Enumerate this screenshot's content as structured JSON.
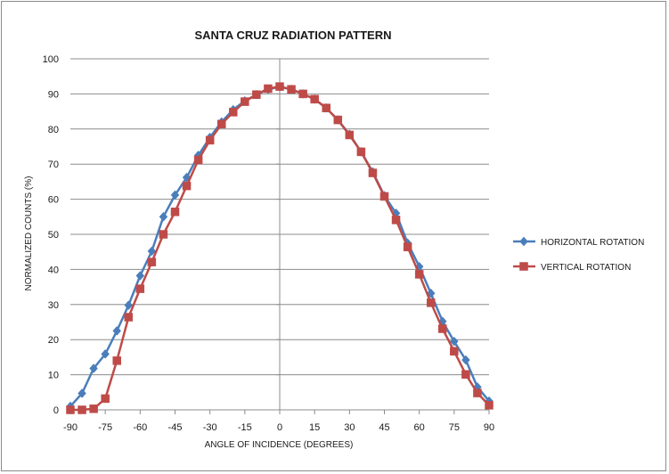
{
  "chart_data": {
    "type": "line",
    "title": "SANTA CRUZ RADIATION PATTERN",
    "xlabel": "ANGLE OF INCIDENCE (DEGREES)",
    "ylabel": "NORMALIZED COUNTS (%)",
    "xlim": [
      -90,
      90
    ],
    "ylim": [
      0,
      100
    ],
    "xticks": [
      -90,
      -75,
      -60,
      -45,
      -30,
      -15,
      0,
      15,
      30,
      45,
      60,
      75,
      90
    ],
    "yticks": [
      0,
      10,
      20,
      30,
      40,
      50,
      60,
      70,
      80,
      90,
      100
    ],
    "grid": "horizontal",
    "legend_position": "right",
    "x": [
      -90,
      -85,
      -80,
      -75,
      -70,
      -65,
      -60,
      -55,
      -50,
      -45,
      -40,
      -35,
      -30,
      -25,
      -20,
      -15,
      -10,
      -5,
      0,
      5,
      10,
      15,
      20,
      25,
      30,
      35,
      40,
      45,
      50,
      55,
      60,
      65,
      70,
      75,
      80,
      85,
      90
    ],
    "series": [
      {
        "name": "HORIZONTAL ROTATION",
        "color": "#4a7ebb",
        "marker": "diamond",
        "values": [
          1,
          4.7,
          11.8,
          15.9,
          22.5,
          29.8,
          38.2,
          45.2,
          55,
          61.2,
          66.2,
          72.5,
          77.6,
          82,
          85.5,
          88,
          89.8,
          91.3,
          92,
          91.3,
          90,
          88.5,
          86,
          82.6,
          78.5,
          73.5,
          67.8,
          61,
          56,
          47.5,
          40.8,
          33.2,
          25.2,
          19.5,
          14.2,
          6.5,
          2.5
        ]
      },
      {
        "name": "VERTICAL ROTATION",
        "color": "#be4b48",
        "marker": "square",
        "values": [
          0,
          0,
          0.3,
          3.2,
          14,
          26.4,
          34.5,
          42.1,
          50,
          56.4,
          63.8,
          71.2,
          76.8,
          81.4,
          84.8,
          87.8,
          89.8,
          91.5,
          92.1,
          91.3,
          90,
          88.5,
          86,
          82.6,
          78.3,
          73.5,
          67.5,
          60.8,
          54.1,
          46.4,
          38.6,
          30.5,
          23.1,
          16.7,
          10.1,
          4.8,
          1.3
        ]
      }
    ]
  }
}
